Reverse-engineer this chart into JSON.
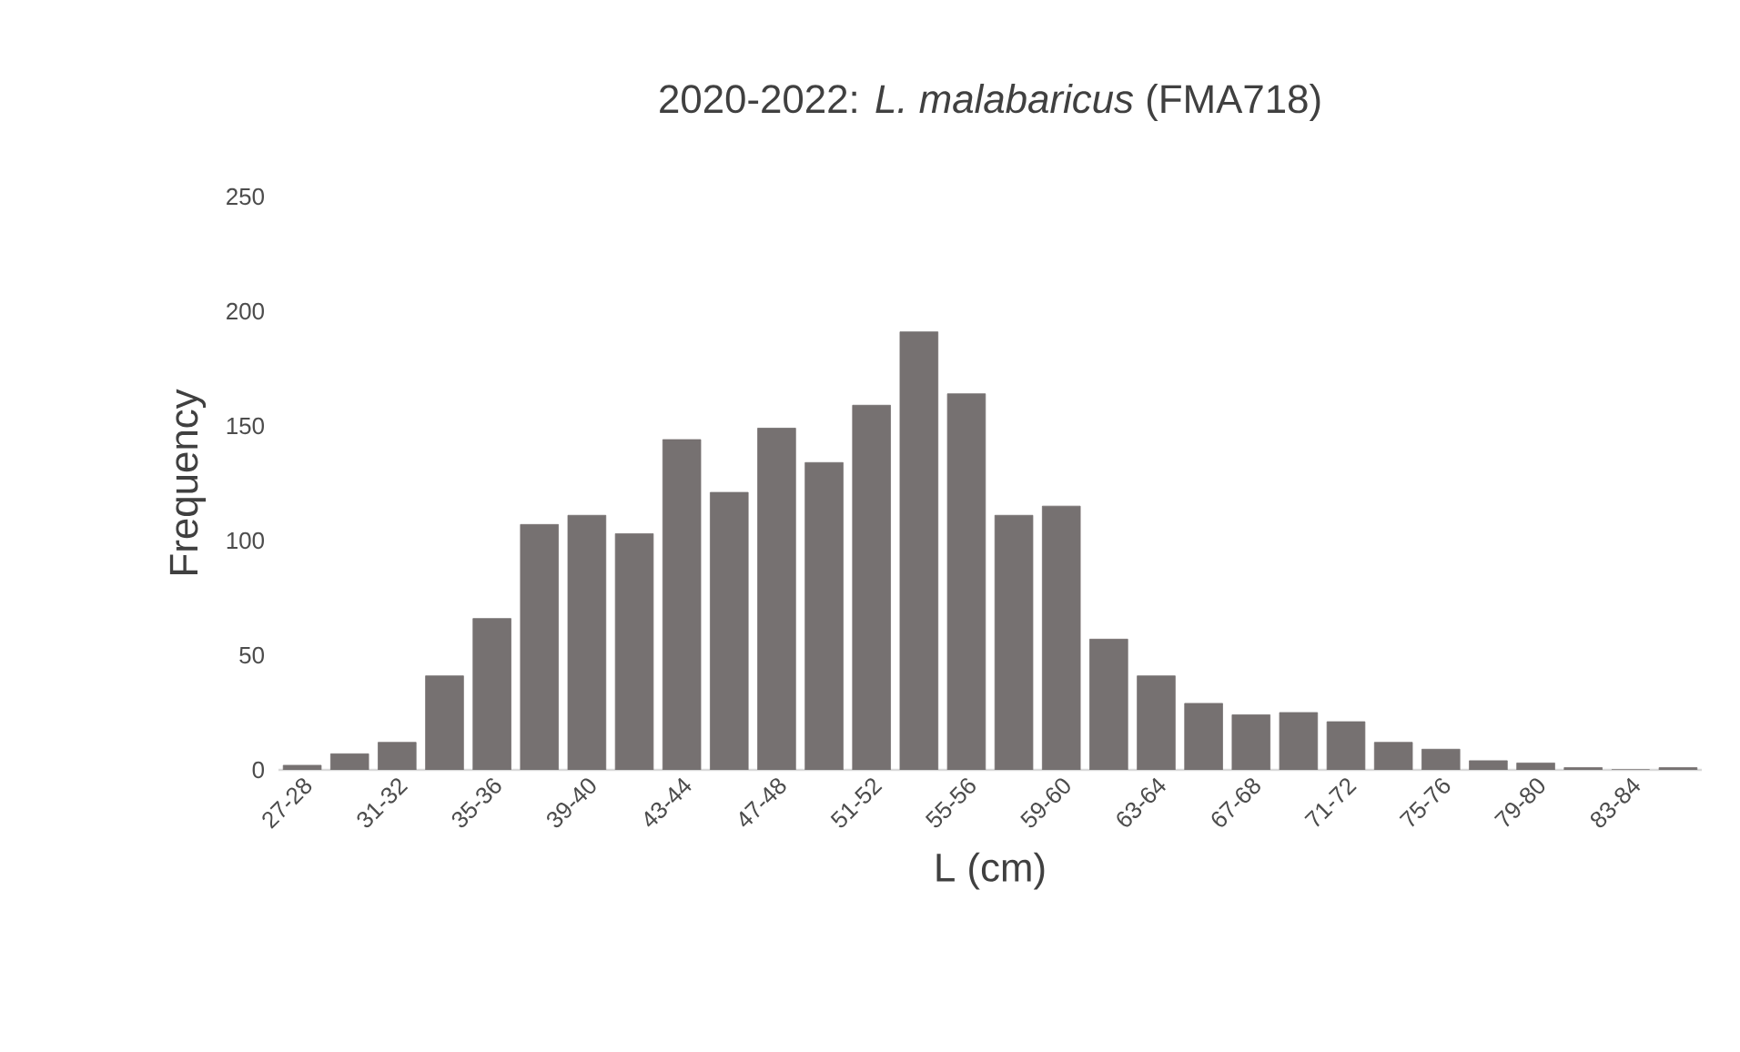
{
  "chart_data": {
    "type": "bar",
    "title": "2020-2022: *L. malabaricus* (FMA718)",
    "xlabel": "L (cm)",
    "ylabel": "Frequency",
    "categories": [
      "27-28",
      null,
      "31-32",
      null,
      "35-36",
      null,
      "39-40",
      null,
      "43-44",
      null,
      "47-48",
      null,
      "51-52",
      null,
      "55-56",
      null,
      "59-60",
      null,
      "63-64",
      null,
      "67-68",
      null,
      "71-72",
      null,
      "75-76",
      null,
      "79-80",
      null,
      "83-84",
      null
    ],
    "values": [
      2,
      7,
      12,
      41,
      66,
      107,
      111,
      103,
      144,
      121,
      149,
      134,
      159,
      191,
      164,
      111,
      115,
      57,
      41,
      29,
      24,
      25,
      21,
      12,
      9,
      4,
      3,
      1,
      0,
      1
    ],
    "color": "#767171",
    "ylim": [
      0,
      250
    ],
    "yticks": [
      0,
      50,
      100,
      150,
      200,
      250
    ],
    "grid": false
  }
}
